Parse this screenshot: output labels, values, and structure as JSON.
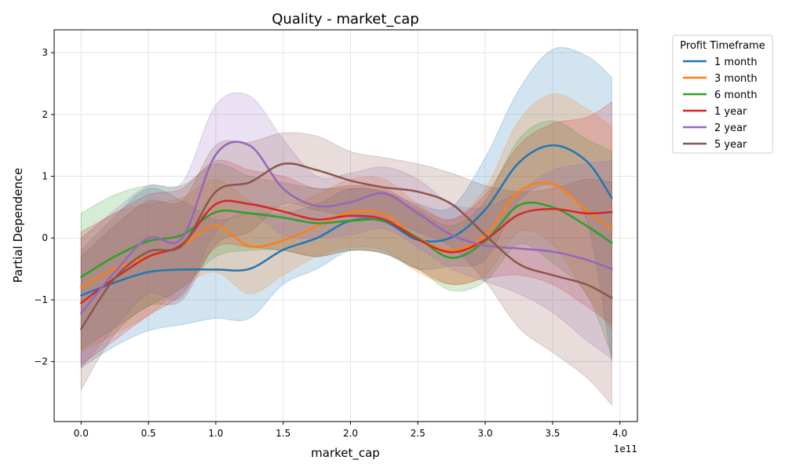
{
  "chart_data": {
    "type": "line",
    "title": "Quality - market_cap",
    "xlabel": "market_cap",
    "ylabel": "Partial Dependence",
    "x_offset_text": "1e11",
    "xlim": [
      -0.2,
      4.13
    ],
    "ylim": [
      -2.97,
      3.37
    ],
    "x_ticks": [
      0,
      0.5,
      1.0,
      1.5,
      2.0,
      2.5,
      3.0,
      3.5,
      4.0
    ],
    "x_tick_labels": [
      "0.0",
      "0.5",
      "1.0",
      "1.5",
      "2.0",
      "2.5",
      "3.0",
      "3.5",
      "4.0"
    ],
    "y_ticks": [
      -2,
      -1,
      0,
      1,
      2,
      3
    ],
    "y_tick_labels": [
      "−2",
      "−1",
      "0",
      "1",
      "2",
      "3"
    ],
    "grid": true,
    "legend": {
      "title": "Profit Timeframe",
      "placement": "outside-right"
    },
    "x": [
      0,
      0.25,
      0.5,
      0.75,
      1.0,
      1.25,
      1.5,
      1.75,
      2.0,
      2.25,
      2.5,
      2.75,
      3.0,
      3.25,
      3.5,
      3.75,
      3.94
    ],
    "series": [
      {
        "name": "1 month",
        "color": "#1f77b4",
        "values": [
          -0.93,
          -0.72,
          -0.55,
          -0.51,
          -0.51,
          -0.5,
          -0.19,
          0.0,
          0.28,
          0.27,
          -0.03,
          0.01,
          0.46,
          1.22,
          1.5,
          1.25,
          0.65
        ],
        "lower": [
          -2.1,
          -1.75,
          -1.5,
          -1.4,
          -1.3,
          -1.3,
          -0.75,
          -0.5,
          -0.2,
          -0.25,
          -0.5,
          -0.45,
          -0.35,
          0.6,
          0.85,
          0.3,
          -2.0
        ],
        "upper": [
          -0.2,
          0.35,
          0.8,
          0.6,
          0.3,
          0.4,
          0.4,
          0.55,
          0.8,
          0.75,
          0.55,
          0.5,
          1.3,
          2.4,
          3.05,
          2.95,
          2.6
        ]
      },
      {
        "name": "3 month",
        "color": "#ff7f0e",
        "values": [
          -0.8,
          -0.5,
          -0.3,
          -0.12,
          0.2,
          -0.13,
          -0.04,
          0.19,
          0.42,
          0.38,
          0.0,
          -0.2,
          0.05,
          0.75,
          0.88,
          0.45,
          0.14
        ],
        "lower": [
          -1.85,
          -1.55,
          -1.25,
          -0.8,
          -0.55,
          -0.9,
          -0.6,
          -0.3,
          -0.15,
          -0.2,
          -0.55,
          -0.75,
          -0.6,
          0.1,
          -0.1,
          -0.9,
          -1.5
        ],
        "upper": [
          0.0,
          0.4,
          0.55,
          0.65,
          0.95,
          0.6,
          0.5,
          0.7,
          0.95,
          0.95,
          0.55,
          0.3,
          0.8,
          1.9,
          2.33,
          2.1,
          1.8
        ]
      },
      {
        "name": "6 month",
        "color": "#2ca02c",
        "values": [
          -0.63,
          -0.3,
          -0.05,
          0.05,
          0.42,
          0.4,
          0.33,
          0.24,
          0.28,
          0.28,
          0.0,
          -0.32,
          -0.05,
          0.53,
          0.5,
          0.2,
          -0.08
        ],
        "lower": [
          -1.8,
          -1.45,
          -1.1,
          -0.8,
          -0.3,
          -0.2,
          -0.2,
          -0.3,
          -0.2,
          -0.25,
          -0.5,
          -0.85,
          -0.7,
          -0.1,
          -0.4,
          -0.9,
          -1.9
        ],
        "upper": [
          0.4,
          0.7,
          0.85,
          0.85,
          1.2,
          1.0,
          0.9,
          0.8,
          0.8,
          0.75,
          0.45,
          0.2,
          0.6,
          1.6,
          1.9,
          1.6,
          1.4
        ]
      },
      {
        "name": "1 year",
        "color": "#d62728",
        "values": [
          -1.05,
          -0.65,
          -0.3,
          -0.1,
          0.55,
          0.55,
          0.43,
          0.3,
          0.36,
          0.3,
          -0.02,
          -0.23,
          -0.03,
          0.38,
          0.47,
          0.4,
          0.42
        ],
        "lower": [
          -2.05,
          -1.65,
          -1.25,
          -0.9,
          -0.15,
          -0.15,
          -0.2,
          -0.3,
          -0.2,
          -0.25,
          -0.5,
          -0.75,
          -0.65,
          -0.6,
          -0.75,
          -1.1,
          -1.4
        ],
        "upper": [
          0.1,
          0.4,
          0.7,
          0.8,
          1.25,
          1.1,
          1.0,
          0.8,
          0.85,
          0.8,
          0.5,
          0.3,
          0.7,
          1.5,
          1.85,
          1.95,
          2.2
        ]
      },
      {
        "name": "2 year",
        "color": "#9467bd",
        "values": [
          -1.22,
          -0.55,
          0.0,
          0.0,
          1.35,
          1.5,
          0.8,
          0.52,
          0.58,
          0.72,
          0.4,
          0.05,
          -0.12,
          -0.17,
          -0.22,
          -0.35,
          -0.5
        ],
        "lower": [
          -2.1,
          -1.45,
          -0.9,
          -0.95,
          0.1,
          0.4,
          0.05,
          0.0,
          0.05,
          0.15,
          -0.15,
          -0.5,
          -0.7,
          -0.9,
          -1.2,
          -1.65,
          -1.95
        ],
        "upper": [
          0.0,
          0.45,
          0.85,
          0.9,
          2.15,
          2.3,
          1.6,
          1.0,
          1.05,
          1.15,
          0.95,
          0.55,
          0.5,
          0.75,
          1.1,
          1.2,
          1.25
        ]
      },
      {
        "name": "5 year",
        "color": "#8c564b",
        "values": [
          -1.47,
          -0.65,
          -0.22,
          -0.12,
          0.75,
          0.9,
          1.2,
          1.1,
          0.93,
          0.82,
          0.75,
          0.55,
          0.05,
          -0.42,
          -0.6,
          -0.75,
          -0.97
        ],
        "lower": [
          -2.45,
          -1.55,
          -1.1,
          -1.0,
          -0.1,
          0.1,
          0.55,
          0.45,
          0.35,
          0.3,
          0.1,
          -0.15,
          -0.7,
          -1.45,
          -1.85,
          -2.25,
          -2.7
        ],
        "upper": [
          -0.3,
          0.2,
          0.6,
          0.6,
          1.5,
          1.55,
          1.7,
          1.65,
          1.4,
          1.3,
          1.2,
          1.05,
          0.85,
          0.75,
          0.8,
          0.95,
          0.9
        ]
      }
    ]
  }
}
